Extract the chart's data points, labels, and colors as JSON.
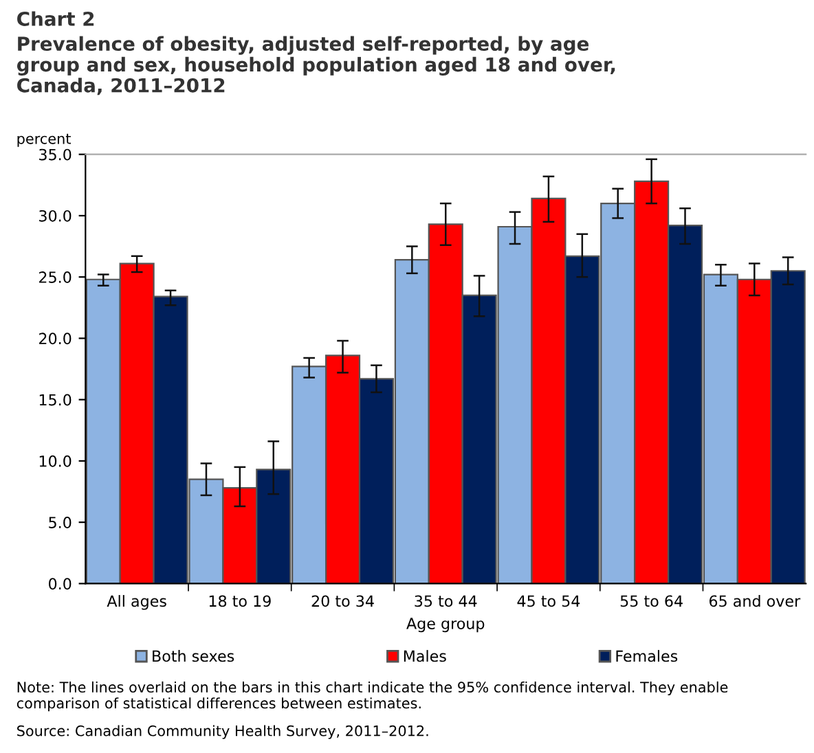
{
  "chart_data": {
    "type": "bar",
    "title": "Chart 2",
    "subtitle": "Prevalence of obesity, adjusted self-reported, by age\ngroup and sex, household population aged 18 and over,\nCanada, 2011–2012",
    "ylabel": "percent",
    "xlabel": "Age group",
    "categories": [
      "All ages",
      "18 to 19",
      "20 to 34",
      "35 to 44",
      "45 to 54",
      "55 to 64",
      "65 and over"
    ],
    "series": [
      {
        "name": "Both sexes",
        "color": "#8db3e2",
        "values": [
          24.8,
          8.5,
          17.7,
          26.4,
          29.1,
          31.0,
          25.2
        ],
        "errors": [
          [
            24.3,
            25.2
          ],
          [
            7.2,
            9.8
          ],
          [
            16.8,
            18.4
          ],
          [
            25.3,
            27.5
          ],
          [
            27.7,
            30.3
          ],
          [
            29.8,
            32.2
          ],
          [
            24.3,
            26.0
          ]
        ]
      },
      {
        "name": "Males",
        "color": "#ff0000",
        "values": [
          26.1,
          7.8,
          18.6,
          29.3,
          31.4,
          32.8,
          24.8
        ],
        "errors": [
          [
            25.4,
            26.7
          ],
          [
            6.3,
            9.5
          ],
          [
            17.2,
            19.8
          ],
          [
            27.6,
            31.0
          ],
          [
            29.5,
            33.2
          ],
          [
            31.0,
            34.6
          ],
          [
            23.5,
            26.1
          ]
        ]
      },
      {
        "name": "Females",
        "color": "#001f5b",
        "values": [
          23.4,
          9.3,
          16.7,
          23.5,
          26.7,
          29.2,
          25.5
        ],
        "errors": [
          [
            22.7,
            23.9
          ],
          [
            7.3,
            11.6
          ],
          [
            15.6,
            17.8
          ],
          [
            21.8,
            25.1
          ],
          [
            25.0,
            28.5
          ],
          [
            27.7,
            30.6
          ],
          [
            24.4,
            26.6
          ]
        ]
      }
    ],
    "ylim": [
      0,
      35
    ],
    "yticks": [
      {
        "value": 0,
        "label": "0.0"
      },
      {
        "value": 5,
        "label": "5.0"
      },
      {
        "value": 10,
        "label": "10.0"
      },
      {
        "value": 15,
        "label": "15.0"
      },
      {
        "value": 20,
        "label": "20.0"
      },
      {
        "value": 25,
        "label": "25.0"
      },
      {
        "value": 30,
        "label": "30.0"
      },
      {
        "value": 35,
        "label": "35.0"
      }
    ],
    "grid": false,
    "legend": "bottom",
    "annotations": [
      "Note: The lines overlaid on the bars in this chart indicate the 95% confidence interval. They enable comparison of statistical differences between estimates.",
      "Source: Canadian Community Health Survey, 2011–2012."
    ]
  }
}
